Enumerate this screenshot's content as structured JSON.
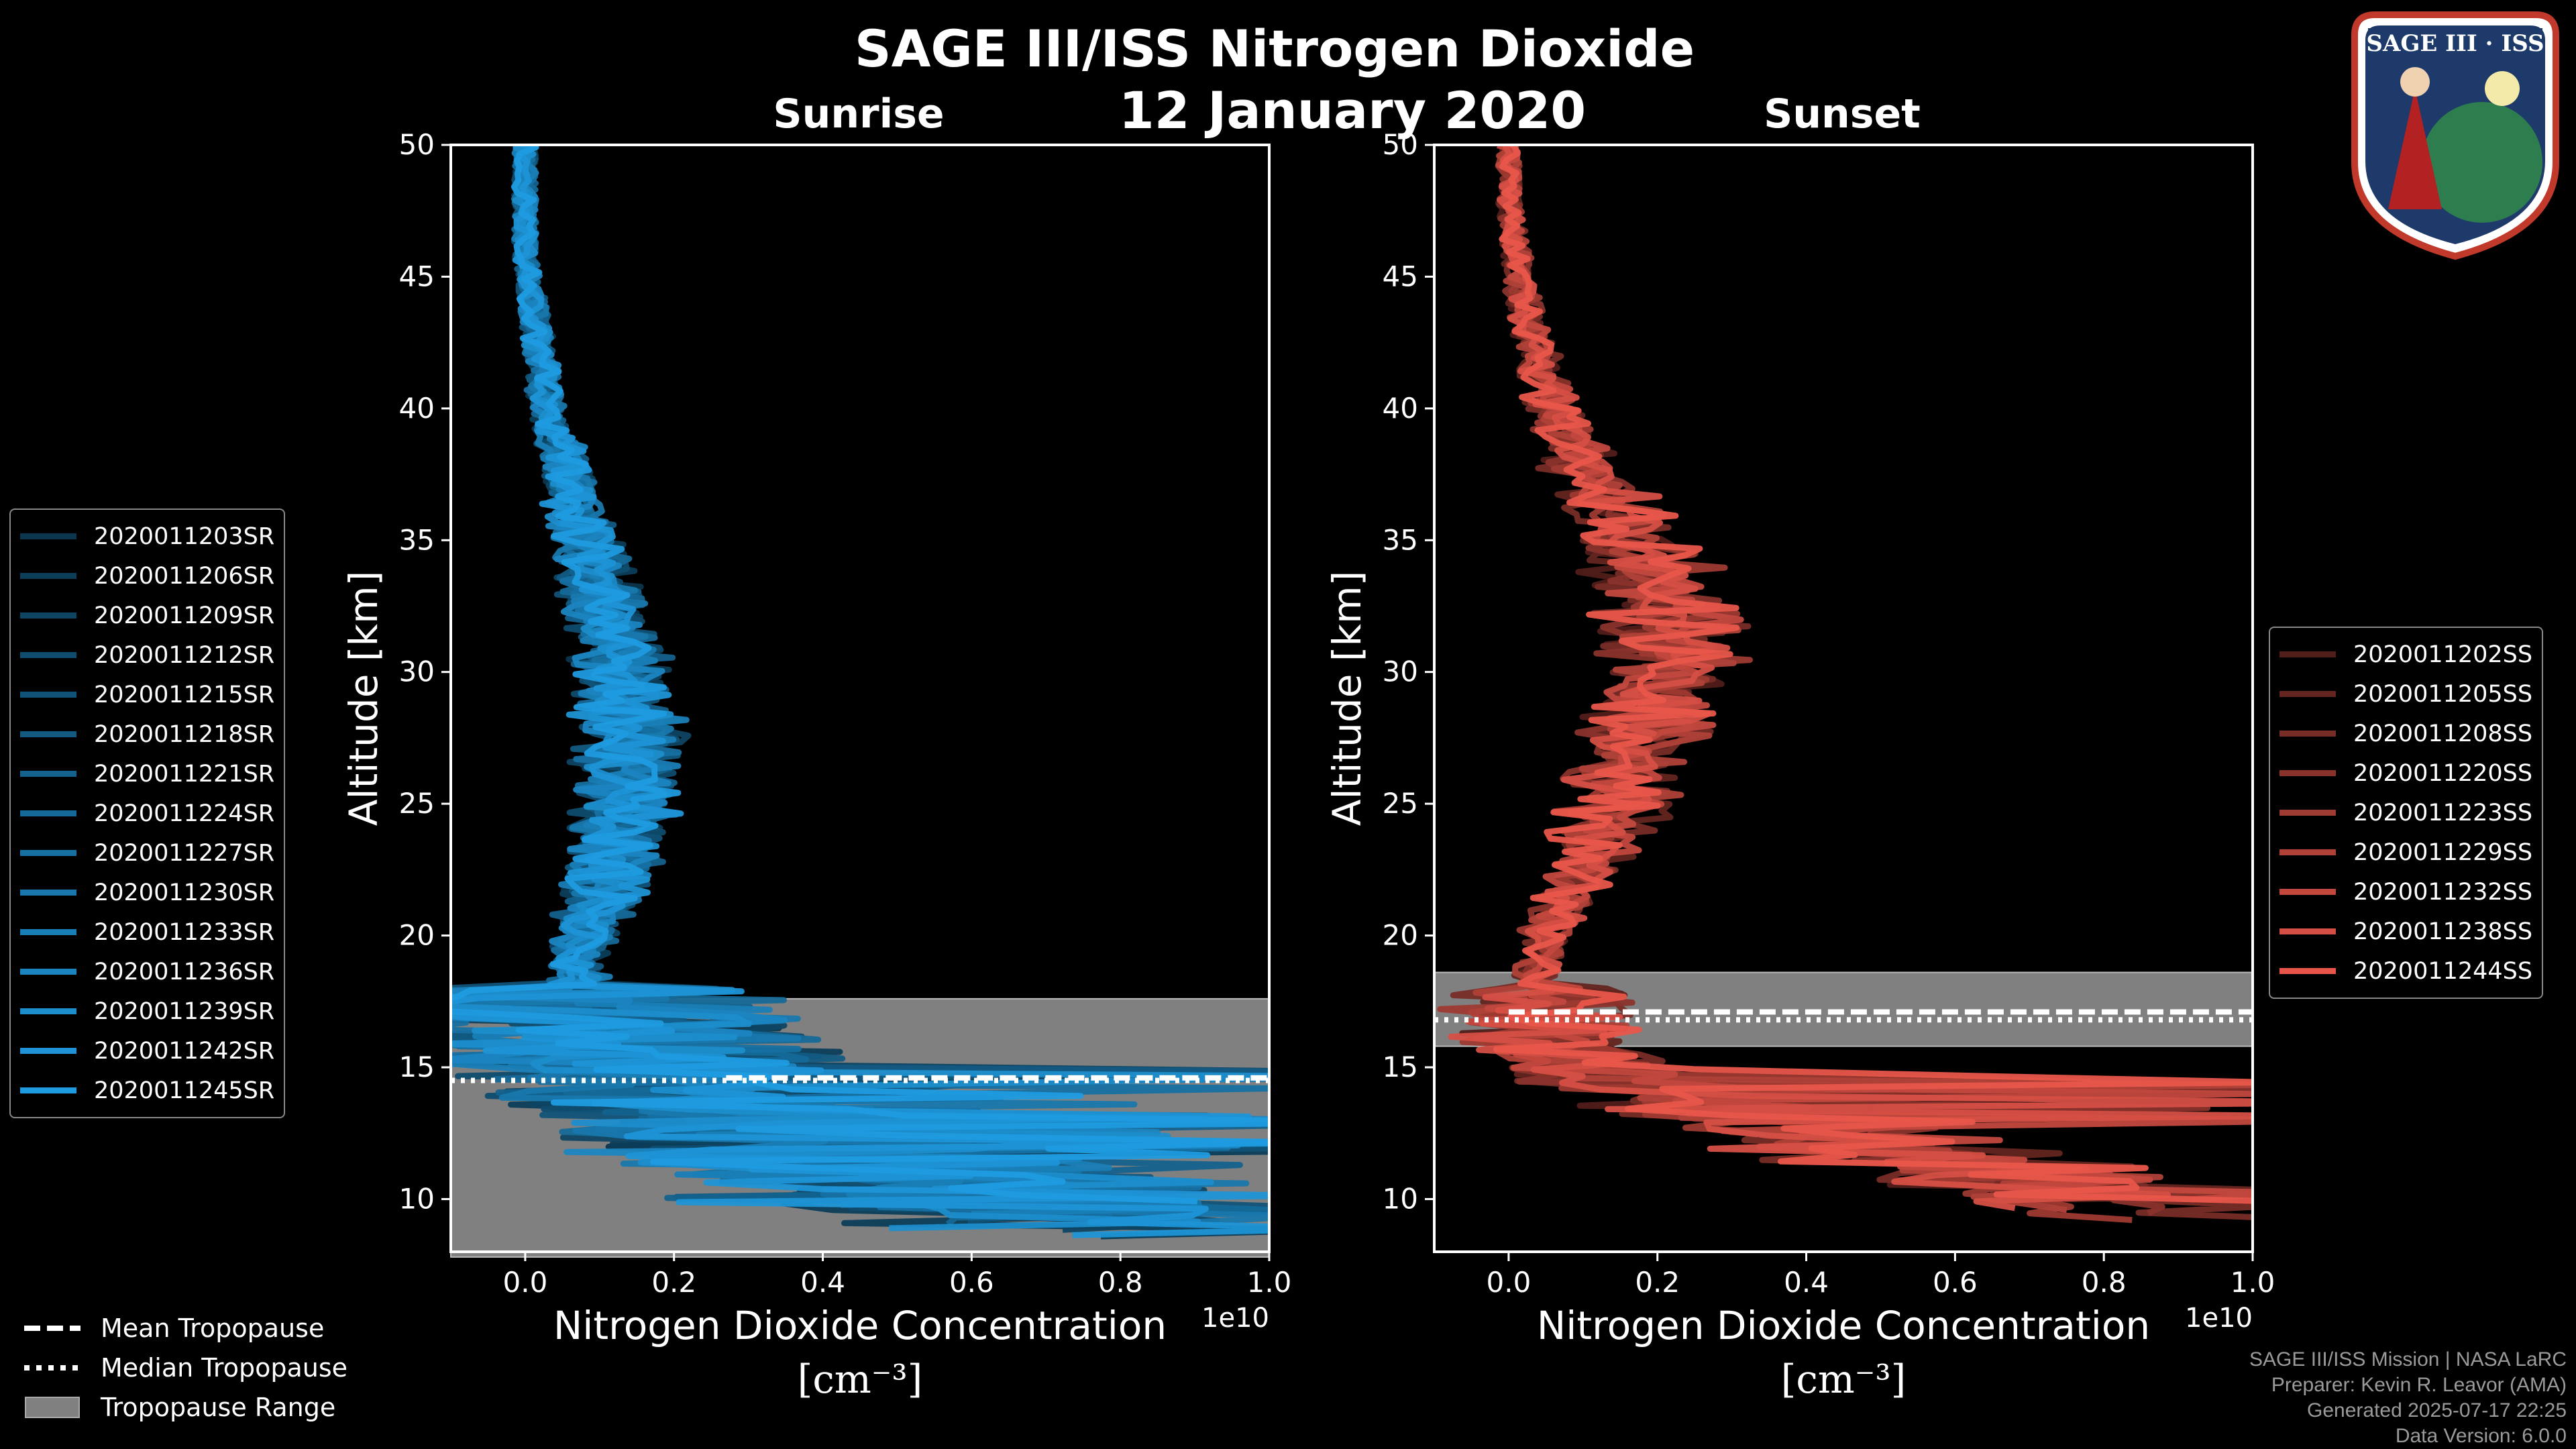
{
  "title": "SAGE III/ISS Nitrogen Dioxide",
  "date": "12 January 2020",
  "logo": {
    "text": "SAGE III · ISS"
  },
  "footer": {
    "line1": "SAGE III/ISS Mission | NASA LaRC",
    "line2": "Preparer: Kevin R. Leavor (AMA)",
    "line3": "Generated 2025-07-17 22:25",
    "line4": "Data Version: 6.0.0"
  },
  "bottom_legend": {
    "mean": "Mean Tropopause",
    "median": "Median Tropopause",
    "range": "Tropopause Range"
  },
  "colors": {
    "sunrise": "#1f9be0",
    "sunset": "#e8564a",
    "tropopause_range": "#808080",
    "background": "#000000"
  },
  "chart_data": [
    {
      "type": "line",
      "title": "Sunrise",
      "xlabel": "Nitrogen Dioxide Concentration",
      "xunit": "[cm⁻³]",
      "xscale_label": "1e10",
      "ylabel": "Altitude [km]",
      "xlim": [
        -0.1,
        1.0
      ],
      "ylim": [
        8,
        50
      ],
      "xticks": [
        "0.0",
        "0.2",
        "0.4",
        "0.6",
        "0.8",
        "1.0"
      ],
      "yticks": [
        "10",
        "15",
        "20",
        "25",
        "30",
        "35",
        "40",
        "45",
        "50"
      ],
      "legend_position": "left",
      "tropopause": {
        "range": [
          7.8,
          17.6
        ],
        "mean": 14.6,
        "median": 14.5,
        "mean_start_x": 0.27
      },
      "series": [
        {
          "name": "2020011203SR"
        },
        {
          "name": "2020011206SR"
        },
        {
          "name": "2020011209SR"
        },
        {
          "name": "2020011212SR"
        },
        {
          "name": "2020011215SR"
        },
        {
          "name": "2020011218SR"
        },
        {
          "name": "2020011221SR"
        },
        {
          "name": "2020011224SR"
        },
        {
          "name": "2020011227SR"
        },
        {
          "name": "2020011230SR"
        },
        {
          "name": "2020011233SR"
        },
        {
          "name": "2020011236SR"
        },
        {
          "name": "2020011239SR"
        },
        {
          "name": "2020011242SR"
        },
        {
          "name": "2020011245SR"
        }
      ],
      "mean_profile": {
        "y": [
          8.5,
          10,
          12,
          14,
          16,
          17.5,
          19,
          20,
          22,
          24,
          26,
          28,
          30,
          32,
          34,
          36,
          38,
          40,
          42,
          44,
          46,
          48,
          50
        ],
        "x": [
          0.9,
          0.6,
          0.35,
          0.2,
          0.12,
          0.08,
          0.07,
          0.08,
          0.11,
          0.13,
          0.14,
          0.14,
          0.13,
          0.11,
          0.09,
          0.07,
          0.05,
          0.03,
          0.02,
          0.01,
          0.0,
          0.0,
          0.0
        ]
      }
    },
    {
      "type": "line",
      "title": "Sunset",
      "xlabel": "Nitrogen Dioxide Concentration",
      "xunit": "[cm⁻³]",
      "xscale_label": "1e10",
      "ylabel": "Altitude [km]",
      "xlim": [
        -0.1,
        1.0
      ],
      "ylim": [
        8,
        50
      ],
      "xticks": [
        "0.0",
        "0.2",
        "0.4",
        "0.6",
        "0.8",
        "1.0"
      ],
      "yticks": [
        "10",
        "15",
        "20",
        "25",
        "30",
        "35",
        "40",
        "45",
        "50"
      ],
      "legend_position": "right",
      "tropopause": {
        "range": [
          15.8,
          18.6
        ],
        "mean": 17.1,
        "median": 16.8,
        "mean_start_x": 0.0
      },
      "series": [
        {
          "name": "2020011202SS"
        },
        {
          "name": "2020011205SS"
        },
        {
          "name": "2020011208SS"
        },
        {
          "name": "2020011220SS"
        },
        {
          "name": "2020011223SS"
        },
        {
          "name": "2020011229SS"
        },
        {
          "name": "2020011232SS"
        },
        {
          "name": "2020011238SS"
        },
        {
          "name": "2020011244SS"
        }
      ],
      "mean_profile": {
        "y": [
          9,
          10,
          12,
          14,
          16,
          18,
          20,
          22,
          24,
          26,
          28,
          30,
          32,
          34,
          36,
          38,
          40,
          42,
          44,
          46,
          48,
          50
        ],
        "x": [
          1.0,
          0.8,
          0.5,
          0.2,
          0.05,
          0.03,
          0.05,
          0.09,
          0.13,
          0.16,
          0.19,
          0.21,
          0.21,
          0.19,
          0.15,
          0.1,
          0.06,
          0.04,
          0.02,
          0.01,
          0.0,
          0.0
        ]
      }
    }
  ]
}
